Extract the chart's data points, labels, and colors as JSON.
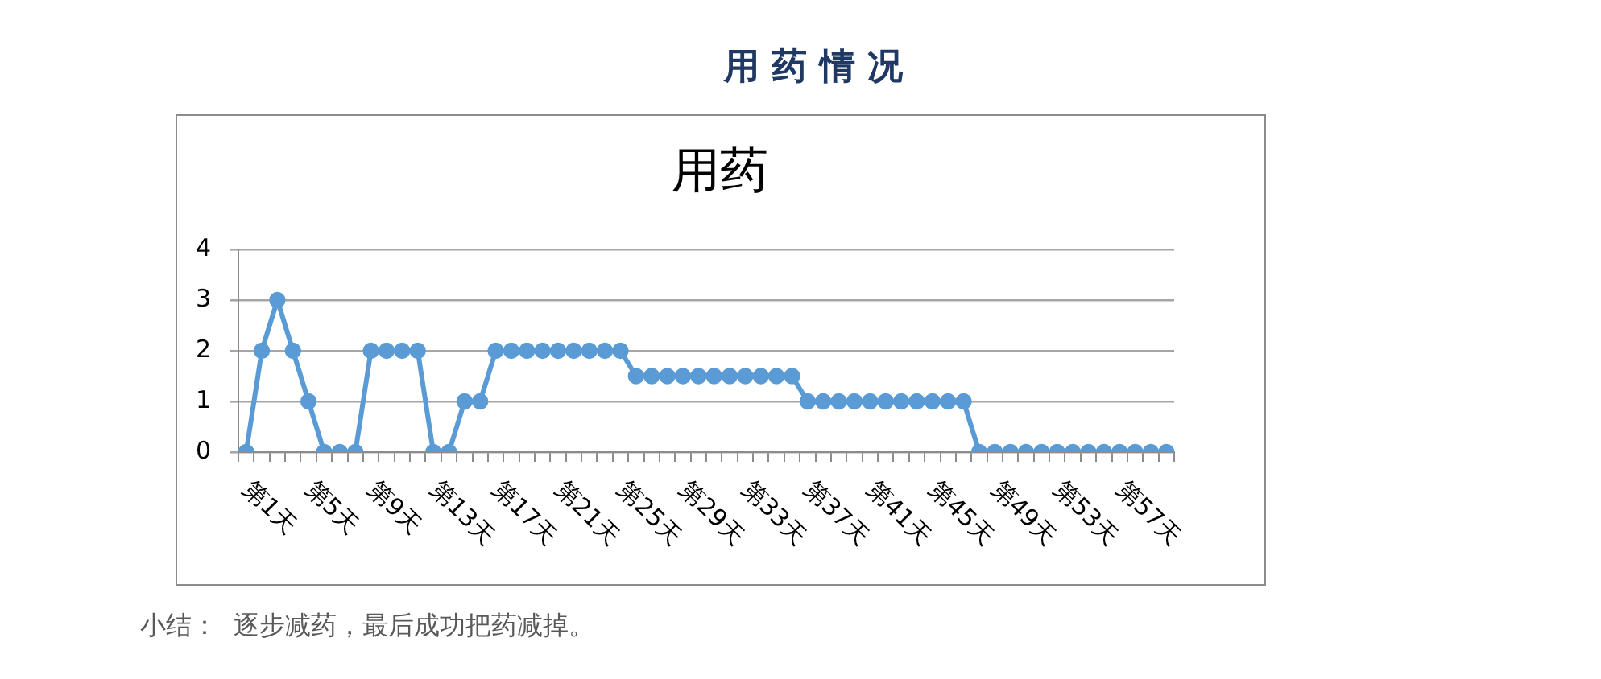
{
  "chart_data": {
    "type": "line",
    "title": "用 药 情 况",
    "subtitle": "用药",
    "categories": [
      "第1天",
      null,
      null,
      null,
      "第5天",
      null,
      null,
      null,
      "第9天",
      null,
      null,
      null,
      "第13天",
      null,
      null,
      null,
      "第17天",
      null,
      null,
      null,
      "第21天",
      null,
      null,
      null,
      "第25天",
      null,
      null,
      null,
      "第29天",
      null,
      null,
      null,
      "第33天",
      null,
      null,
      null,
      "第37天",
      null,
      null,
      null,
      "第41天",
      null,
      null,
      null,
      "第45天",
      null,
      null,
      null,
      "第49天",
      null,
      null,
      null,
      "第53天",
      null,
      null,
      null,
      "第57天",
      null,
      null,
      null
    ],
    "series": [
      {
        "color": "#5b9bd5",
        "values": [
          0,
          2,
          3,
          2,
          1,
          0,
          0,
          0,
          2,
          2,
          2,
          2,
          0,
          0,
          1,
          1,
          2,
          2,
          2,
          2,
          2,
          2,
          2,
          2,
          2,
          1.5,
          1.5,
          1.5,
          1.5,
          1.5,
          1.5,
          1.5,
          1.5,
          1.5,
          1.5,
          1.5,
          1,
          1,
          1,
          1,
          1,
          1,
          1,
          1,
          1,
          1,
          1,
          0,
          0,
          0,
          0,
          0,
          0,
          0,
          0,
          0,
          0,
          0,
          0,
          0
        ]
      }
    ],
    "ylim": [
      0,
      4
    ],
    "yticks": [
      0,
      1,
      2,
      3,
      4
    ],
    "grid": "y",
    "marker": "circle",
    "line_style": "solid",
    "annotations": [
      "小结：  逐步减药，最后成功把药减掉。"
    ]
  }
}
